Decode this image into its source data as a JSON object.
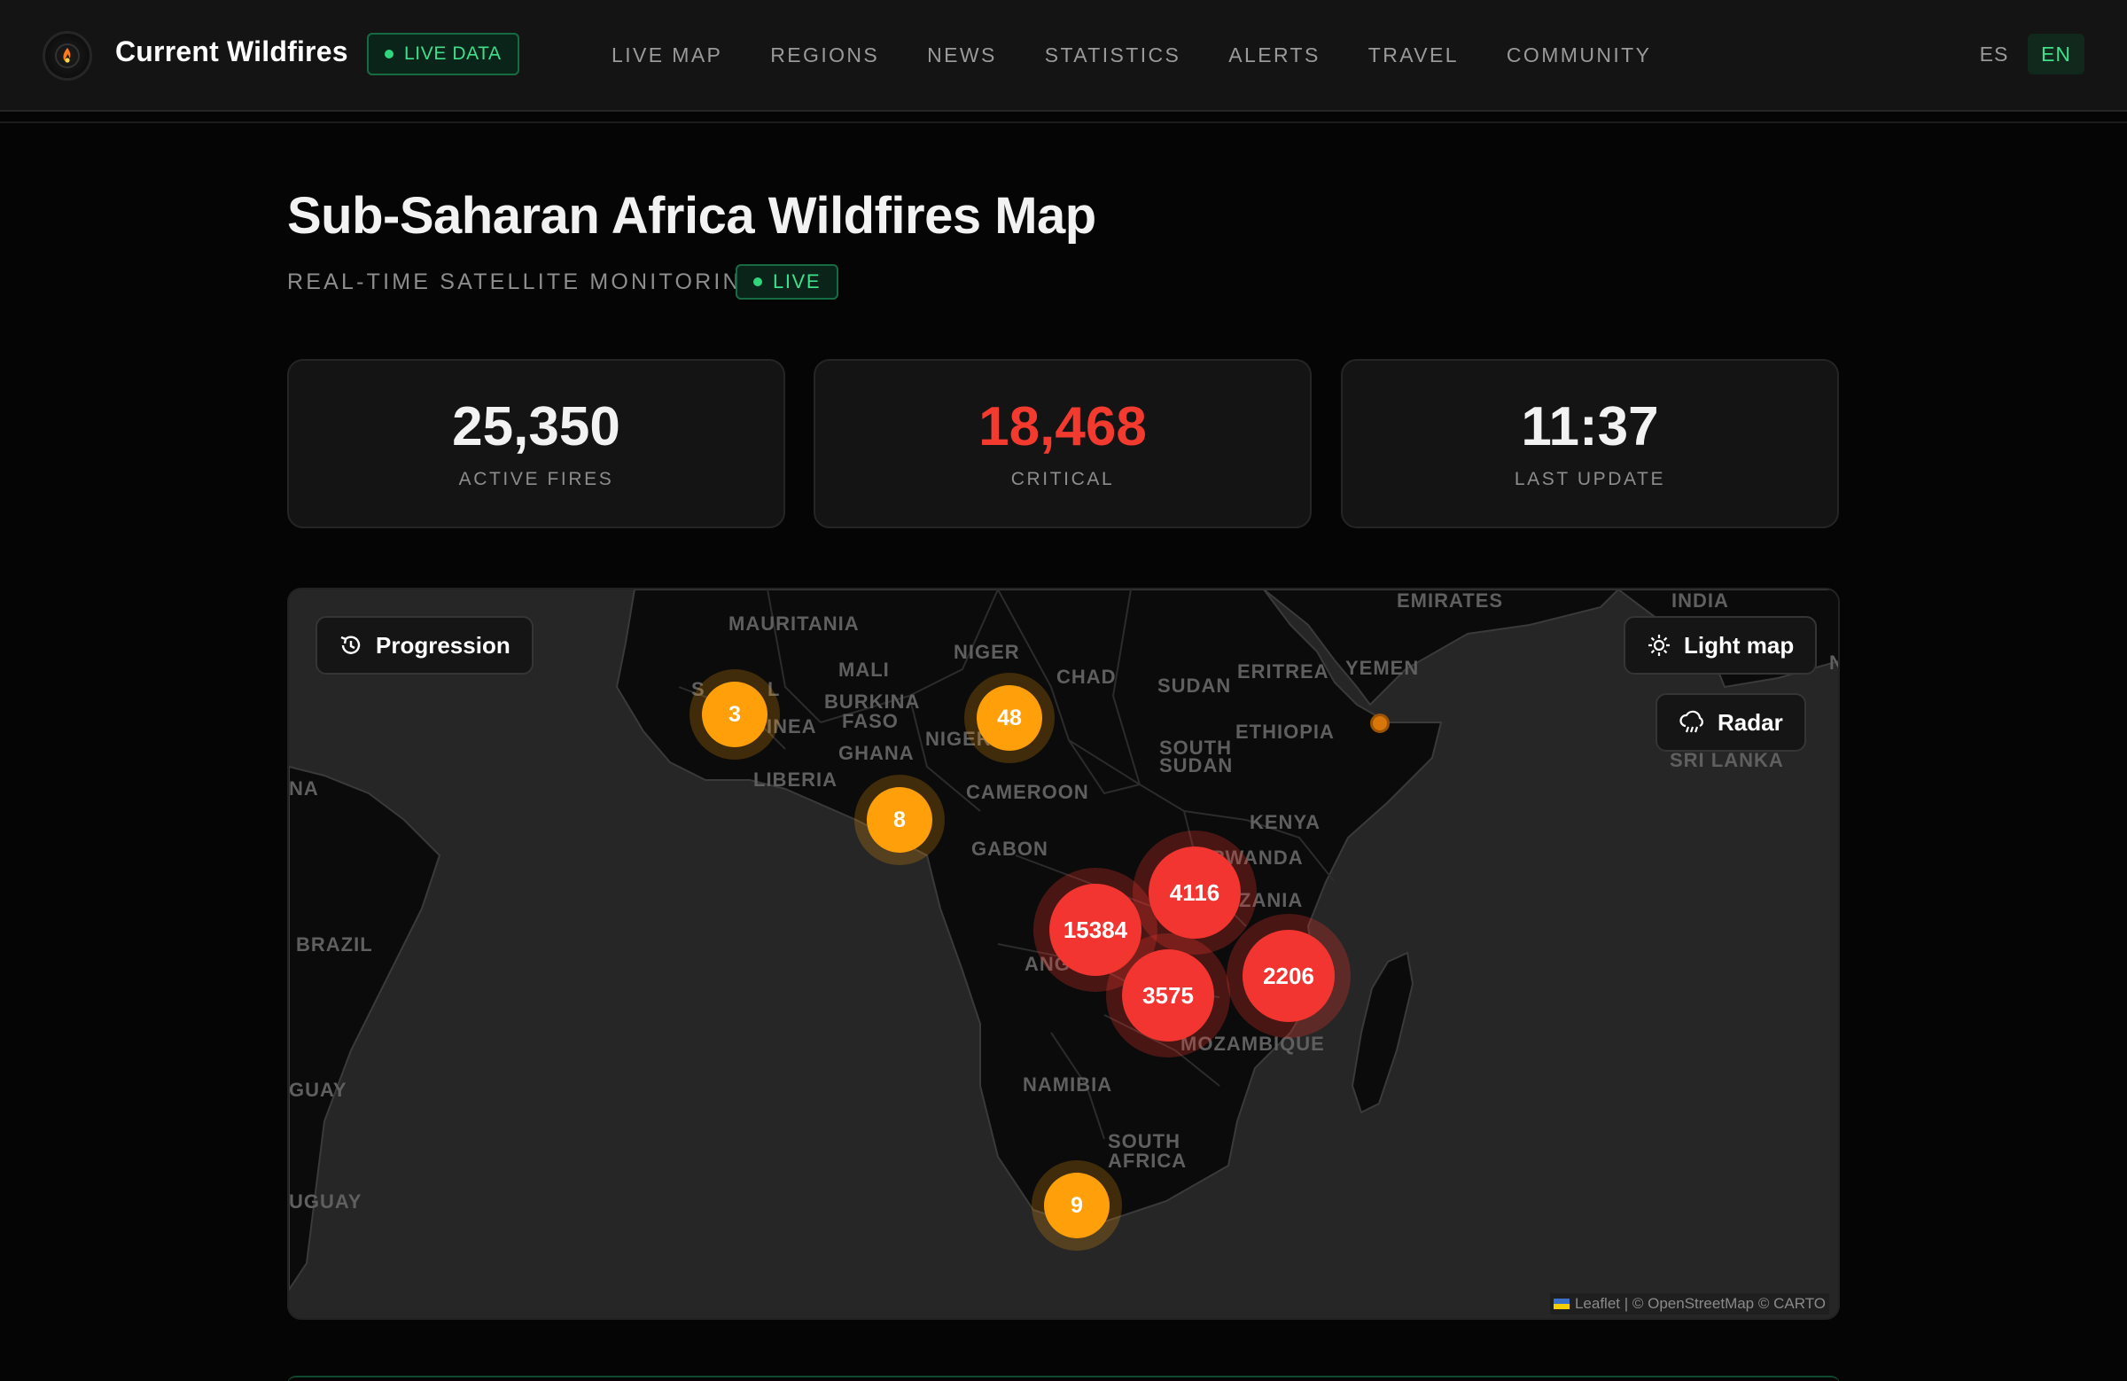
{
  "nav": {
    "brand": "Current Wildfires",
    "live_badge": "LIVE DATA",
    "items": [
      "LIVE MAP",
      "REGIONS",
      "NEWS",
      "STATISTICS",
      "ALERTS",
      "TRAVEL",
      "COMMUNITY"
    ],
    "languages": [
      "ES",
      "EN"
    ],
    "active_language": "EN"
  },
  "header": {
    "title": "Sub-Saharan Africa Wildfires Map",
    "subtitle": "REAL-TIME SATELLITE MONITORING",
    "live_badge": "LIVE"
  },
  "stats": [
    {
      "value": "25,350",
      "label": "ACTIVE FIRES"
    },
    {
      "value": "18,468",
      "label": "CRITICAL"
    },
    {
      "value": "11:37",
      "label": "LAST UPDATE"
    }
  ],
  "map": {
    "controls": {
      "progression": "Progression",
      "light_map": "Light map",
      "radar": "Radar"
    },
    "labels": [
      "MAURITANIA",
      "MALI",
      "NIGER",
      "CHAD",
      "SUDAN",
      "ERITREA",
      "YEMEN",
      "EMIRATES",
      "INDIA",
      "BURKINA",
      "FASO",
      "GUINEA",
      "NIGERIA",
      "GHANA",
      "LIBERIA",
      "CAMEROON",
      "SOUTH",
      "SUDAN",
      "ETHIOPIA",
      "KENYA",
      "GABON",
      "SRI LANKA",
      "BRAZIL",
      "ZANIA",
      "ANG",
      "MOZAMBIQUE",
      "NAMIBIA",
      "SOUTH",
      "AFRICA",
      "NA",
      "GUAY",
      "UGUAY",
      "S",
      "L",
      "N",
      "RWANDA"
    ],
    "clusters": [
      {
        "count": "3",
        "severity": "orange"
      },
      {
        "count": "48",
        "severity": "orange"
      },
      {
        "count": "8",
        "severity": "orange"
      },
      {
        "count": "4116",
        "severity": "red"
      },
      {
        "count": "15384",
        "severity": "red"
      },
      {
        "count": "2206",
        "severity": "red"
      },
      {
        "count": "3575",
        "severity": "red"
      },
      {
        "count": "9",
        "severity": "orange"
      }
    ],
    "attribution": "Leaflet | © OpenStreetMap © CARTO"
  },
  "colors": {
    "accent_green": "#3ee08a",
    "critical_red": "#f23a2f",
    "cluster_orange": "#ff9f0a",
    "cluster_red": "#f23530"
  }
}
